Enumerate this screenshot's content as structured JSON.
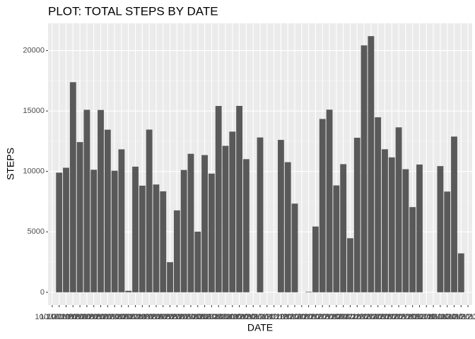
{
  "chart_data": {
    "type": "bar",
    "title": "PLOT: TOTAL STEPS BY DATE",
    "x_label": "DATE",
    "y_label": "STEPS",
    "categories": [
      "10/1/2012",
      "10/10/2012",
      "10/11/2012",
      "10/12/2012",
      "10/13/2012",
      "10/14/2012",
      "10/15/2012",
      "10/16/2012",
      "10/17/2012",
      "10/18/2012",
      "10/19/2012",
      "10/2/2012",
      "10/20/2012",
      "10/21/2012",
      "10/22/2012",
      "10/23/2012",
      "10/24/2012",
      "10/25/2012",
      "10/26/2012",
      "10/27/2012",
      "10/28/2012",
      "10/29/2012",
      "10/3/2012",
      "10/30/2012",
      "10/31/2012",
      "10/4/2012",
      "10/5/2012",
      "10/6/2012",
      "10/7/2012",
      "10/8/2012",
      "10/9/2012",
      "11/1/2012",
      "11/10/2012",
      "11/11/2012",
      "11/12/2012",
      "11/13/2012",
      "11/14/2012",
      "11/15/2012",
      "11/16/2012",
      "11/17/2012",
      "11/18/2012",
      "11/19/2012",
      "11/2/2012",
      "11/20/2012",
      "11/21/2012",
      "11/22/2012",
      "11/23/2012",
      "11/24/2012",
      "11/25/2012",
      "11/26/2012",
      "11/27/2012",
      "11/28/2012",
      "11/29/2012",
      "11/3/2012",
      "11/30/2012",
      "11/4/2012",
      "11/5/2012",
      "11/6/2012",
      "11/7/2012",
      "11/8/2012",
      "11/9/2012"
    ],
    "values": [
      null,
      9900,
      10304,
      17382,
      12426,
      15098,
      10139,
      15084,
      13452,
      10056,
      11829,
      126,
      10395,
      8821,
      13460,
      8918,
      8355,
      2492,
      6778,
      10119,
      11458,
      5018,
      11352,
      9819,
      15414,
      12116,
      13294,
      15420,
      11015,
      null,
      12811,
      null,
      null,
      12608,
      10765,
      7336,
      null,
      41,
      5441,
      14339,
      15110,
      8841,
      10600,
      4472,
      12787,
      20427,
      21194,
      14478,
      11834,
      11162,
      13646,
      10183,
      7047,
      10571,
      null,
      null,
      10439,
      8334,
      12883,
      3219,
      null
    ],
    "color": "#595959",
    "ylim": [
      -1060,
      22254
    ],
    "yticks": [
      0,
      5000,
      10000,
      15000,
      20000
    ],
    "grid": true
  }
}
